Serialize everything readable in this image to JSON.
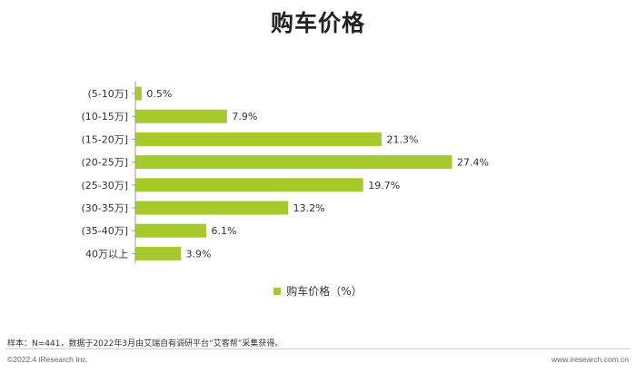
{
  "title": "购车价格",
  "chart_data": {
    "type": "bar",
    "orientation": "horizontal",
    "categories": [
      "(5-10万]",
      "(10-15万]",
      "(15-20万]",
      "(20-25万]",
      "(25-30万]",
      "(30-35万]",
      "(35-40万]",
      "40万以上"
    ],
    "series": [
      {
        "name": "购车价格（%）",
        "values": [
          0.5,
          7.9,
          21.3,
          27.4,
          19.7,
          13.2,
          6.1,
          3.9
        ]
      }
    ],
    "value_labels": [
      "0.5%",
      "7.9%",
      "21.3%",
      "27.4%",
      "19.7%",
      "13.2%",
      "6.1%",
      "3.9%"
    ],
    "xlim": [
      0,
      27.4
    ],
    "grid": false,
    "legend_position": "bottom-center",
    "bar_color": "#a6c92c"
  },
  "legend_label": "购车价格（%）",
  "note": "样本：N=441，数据于2022年3月由艾瑞自有调研平台“艾客帮”采集获得。",
  "footer_left": "©2022.4 iResearch Inc.",
  "footer_right": "www.iresearch.com.cn"
}
